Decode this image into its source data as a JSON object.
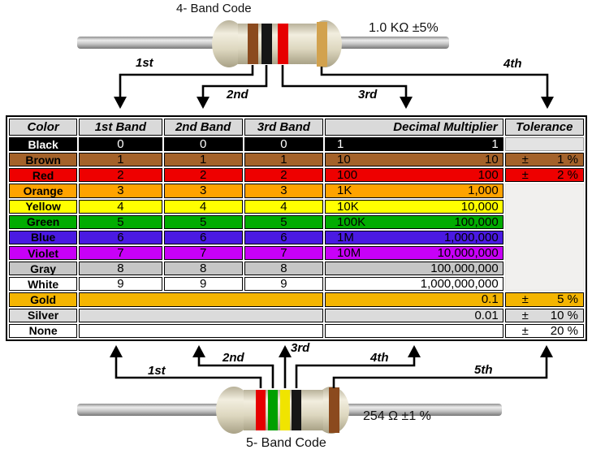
{
  "top": {
    "title": "4- Band Code",
    "value": "1.0 KΩ  ±5%",
    "band_labels": [
      "1st",
      "2nd",
      "3rd",
      "4th"
    ],
    "bands": [
      "brown",
      "black",
      "red",
      "gold"
    ]
  },
  "bottom": {
    "title": "5- Band Code",
    "value": "254 Ω  ±1 %",
    "band_labels": [
      "1st",
      "2nd",
      "3rd",
      "4th",
      "5th"
    ],
    "bands": [
      "red",
      "green",
      "yellow",
      "black",
      "brown"
    ]
  },
  "band_palette": {
    "brown": "#8B4A1E",
    "black": "#161616",
    "red": "#E60000",
    "gold": "#D2A24E",
    "green": "#00A000",
    "yellow": "#F0E400"
  },
  "table": {
    "headers": [
      "Color",
      "1st Band",
      "2nd Band",
      "3rd Band",
      "Decimal Multiplier",
      "Tolerance"
    ],
    "rows": [
      {
        "name": "Black",
        "bg": "#000000",
        "fg": "#FFFFFF",
        "digits": [
          "0",
          "0",
          "0"
        ],
        "mult": [
          "1",
          "1"
        ],
        "tol": {
          "type": "empty"
        }
      },
      {
        "name": "Brown",
        "bg": "#A4622A",
        "fg": "#000000",
        "digits": [
          "1",
          "1",
          "1"
        ],
        "mult": [
          "10",
          "10"
        ],
        "tol": {
          "type": "val",
          "pm": "±",
          "val": "1 %"
        }
      },
      {
        "name": "Red",
        "bg": "#EE0000",
        "fg": "#000000",
        "digits": [
          "2",
          "2",
          "2"
        ],
        "mult": [
          "100",
          "100"
        ],
        "tol": {
          "type": "val",
          "pm": "±",
          "val": "2 %"
        }
      },
      {
        "name": "Orange",
        "bg": "#FFA300",
        "fg": "#000000",
        "digits": [
          "3",
          "3",
          "3"
        ],
        "mult": [
          "1K",
          "1,000"
        ],
        "tol": {
          "type": "span",
          "span": 7
        }
      },
      {
        "name": "Yellow",
        "bg": "#FFFF00",
        "fg": "#000000",
        "digits": [
          "4",
          "4",
          "4"
        ],
        "mult": [
          "10K",
          "10,000"
        ],
        "tol": null
      },
      {
        "name": "Green",
        "bg": "#00AC00",
        "fg": "#000000",
        "digits": [
          "5",
          "5",
          "5"
        ],
        "mult": [
          "100K",
          "100,000"
        ],
        "tol": null
      },
      {
        "name": "Blue",
        "bg": "#4A1AE2",
        "fg": "#000000",
        "digits": [
          "6",
          "6",
          "6"
        ],
        "mult": [
          "1M",
          "1,000,000"
        ],
        "tol": null
      },
      {
        "name": "Violet",
        "bg": "#C800F8",
        "fg": "#000000",
        "digits": [
          "7",
          "7",
          "7"
        ],
        "mult": [
          "10M",
          "10,000,000"
        ],
        "tol": null
      },
      {
        "name": "Gray",
        "bg": "#C6C6C6",
        "fg": "#000000",
        "digits": [
          "8",
          "8",
          "8"
        ],
        "mult": [
          "",
          "100,000,000"
        ],
        "tol": null
      },
      {
        "name": "White",
        "bg": "#FFFFFF",
        "fg": "#000000",
        "digits": [
          "9",
          "9",
          "9"
        ],
        "mult": [
          "",
          "1,000,000,000"
        ],
        "tol": null
      },
      {
        "name": "Gold",
        "bg": "#F4B501",
        "fg": "#000000",
        "digits": null,
        "mult": [
          "",
          "0.1"
        ],
        "tol": {
          "type": "val",
          "pm": "±",
          "val": "5 %"
        }
      },
      {
        "name": "Silver",
        "bg": "#DBDBDB",
        "fg": "#000000",
        "digits": null,
        "mult": [
          "",
          "0.01"
        ],
        "tol": {
          "type": "val",
          "pm": "±",
          "val": "10 %"
        }
      },
      {
        "name": "None",
        "bg": "#FFFFFF",
        "fg": "#000000",
        "digits": null,
        "mult": [
          "",
          ""
        ],
        "tol": {
          "type": "val",
          "pm": "±",
          "val": "20 %"
        }
      }
    ]
  }
}
